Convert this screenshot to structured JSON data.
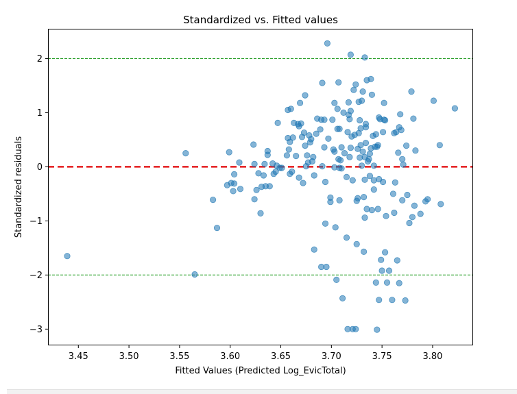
{
  "chart_data": {
    "type": "scatter",
    "title": "Standardized vs. Fitted values",
    "xlabel": "Fitted Values (Predicted Log_EvicTotal)",
    "ylabel": "Standardized residuals",
    "xlim": [
      3.42,
      3.84
    ],
    "ylim": [
      -3.3,
      2.55
    ],
    "xticks": [
      3.45,
      3.5,
      3.55,
      3.6,
      3.65,
      3.7,
      3.75,
      3.8
    ],
    "xtick_labels": [
      "3.45",
      "3.50",
      "3.55",
      "3.60",
      "3.65",
      "3.70",
      "3.75",
      "3.80"
    ],
    "yticks": [
      2,
      1,
      0,
      -1,
      -2,
      -3
    ],
    "ytick_labels": [
      "2",
      "1",
      "0",
      "−1",
      "−2",
      "−3"
    ],
    "grid": false,
    "point_color": "#1f77b4",
    "reference_lines": [
      {
        "y": 0,
        "color": "#e41a1c",
        "style": "dashed"
      },
      {
        "y": 2,
        "color": "#2ca02c",
        "style": "dashed"
      },
      {
        "y": -2,
        "color": "#2ca02c",
        "style": "dashed"
      }
    ],
    "points": [
      [
        3.439,
        -1.65
      ],
      [
        3.556,
        0.25
      ],
      [
        3.565,
        -1.99
      ],
      [
        3.583,
        -0.61
      ],
      [
        3.587,
        -1.13
      ],
      [
        3.597,
        -0.34
      ],
      [
        3.599,
        0.27
      ],
      [
        3.601,
        -0.3
      ],
      [
        3.603,
        -0.45
      ],
      [
        3.604,
        -0.14
      ],
      [
        3.604,
        -0.31
      ],
      [
        3.609,
        0.08
      ],
      [
        3.61,
        -0.41
      ],
      [
        3.623,
        0.41
      ],
      [
        3.624,
        0.05
      ],
      [
        3.624,
        -0.6
      ],
      [
        3.626,
        -0.43
      ],
      [
        3.628,
        -0.12
      ],
      [
        3.63,
        -0.86
      ],
      [
        3.631,
        -0.37
      ],
      [
        3.633,
        -0.16
      ],
      [
        3.634,
        0.05
      ],
      [
        3.635,
        -0.36
      ],
      [
        3.637,
        0.29
      ],
      [
        3.637,
        0.22
      ],
      [
        3.639,
        -0.36
      ],
      [
        3.642,
        0.06
      ],
      [
        3.643,
        -0.13
      ],
      [
        3.645,
        -0.09
      ],
      [
        3.646,
        0.02
      ],
      [
        3.647,
        0.81
      ],
      [
        3.649,
        -0.02
      ],
      [
        3.651,
        -0.02
      ],
      [
        3.656,
        0.21
      ],
      [
        3.657,
        1.05
      ],
      [
        3.657,
        0.53
      ],
      [
        3.658,
        0.32
      ],
      [
        3.659,
        -0.13
      ],
      [
        3.659,
        0.46
      ],
      [
        3.66,
        1.07
      ],
      [
        3.661,
        -0.09
      ],
      [
        3.662,
        0.54
      ],
      [
        3.663,
        0.81
      ],
      [
        3.665,
        0.2
      ],
      [
        3.667,
        0.79
      ],
      [
        3.668,
        0.75
      ],
      [
        3.668,
        -0.2
      ],
      [
        3.669,
        1.18
      ],
      [
        3.67,
        0.8
      ],
      [
        3.671,
        0.55
      ],
      [
        3.672,
        -0.3
      ],
      [
        3.673,
        0.63
      ],
      [
        3.674,
        1.32
      ],
      [
        3.674,
        0.39
      ],
      [
        3.675,
        0.01
      ],
      [
        3.676,
        0.21
      ],
      [
        3.677,
        0.08
      ],
      [
        3.678,
        0.58
      ],
      [
        3.679,
        0.45
      ],
      [
        3.68,
        0.51
      ],
      [
        3.681,
        0.1
      ],
      [
        3.682,
        0.18
      ],
      [
        3.683,
        -0.16
      ],
      [
        3.683,
        -1.53
      ],
      [
        3.685,
        0.61
      ],
      [
        3.686,
        0.89
      ],
      [
        3.689,
        0.69
      ],
      [
        3.69,
        -1.85
      ],
      [
        3.69,
        0.87
      ],
      [
        3.691,
        1.55
      ],
      [
        3.691,
        0.01
      ],
      [
        3.693,
        0.36
      ],
      [
        3.693,
        0.87
      ],
      [
        3.694,
        -0.28
      ],
      [
        3.694,
        -1.05
      ],
      [
        3.695,
        -1.85
      ],
      [
        3.696,
        2.28
      ],
      [
        3.697,
        0.52
      ],
      [
        3.699,
        -0.65
      ],
      [
        3.699,
        -0.57
      ],
      [
        3.701,
        0.87
      ],
      [
        3.702,
        0.32
      ],
      [
        3.703,
        0.28
      ],
      [
        3.703,
        -0.01
      ],
      [
        3.703,
        1.18
      ],
      [
        3.704,
        -1.12
      ],
      [
        3.705,
        -2.09
      ],
      [
        3.706,
        1.07
      ],
      [
        3.706,
        0.7
      ],
      [
        3.707,
        1.56
      ],
      [
        3.707,
        0.14
      ],
      [
        3.708,
        0.7
      ],
      [
        3.708,
        -0.62
      ],
      [
        3.708,
        -0.02
      ],
      [
        3.709,
        0.12
      ],
      [
        3.71,
        0.36
      ],
      [
        3.71,
        -0.03
      ],
      [
        3.711,
        -2.43
      ],
      [
        3.712,
        1.0
      ],
      [
        3.713,
        0.25
      ],
      [
        3.715,
        -0.19
      ],
      [
        3.715,
        -1.31
      ],
      [
        3.716,
        0.64
      ],
      [
        3.716,
        -3.0
      ],
      [
        3.717,
        1.19
      ],
      [
        3.717,
        0.96
      ],
      [
        3.718,
        0.88
      ],
      [
        3.718,
        0.18
      ],
      [
        3.719,
        1.03
      ],
      [
        3.719,
        0.35
      ],
      [
        3.719,
        2.07
      ],
      [
        3.72,
        0.56
      ],
      [
        3.721,
        -0.25
      ],
      [
        3.721,
        -3.0
      ],
      [
        3.722,
        1.42
      ],
      [
        3.723,
        0.59
      ],
      [
        3.724,
        1.52
      ],
      [
        3.724,
        -3.0
      ],
      [
        3.725,
        -1.43
      ],
      [
        3.725,
        -0.63
      ],
      [
        3.726,
        -0.58
      ],
      [
        3.726,
        0.33
      ],
      [
        3.727,
        0.62
      ],
      [
        3.727,
        1.2
      ],
      [
        3.728,
        0.86
      ],
      [
        3.728,
        0.17
      ],
      [
        3.729,
        0.71
      ],
      [
        3.729,
        0.4
      ],
      [
        3.73,
        1.22
      ],
      [
        3.73,
        0.02
      ],
      [
        3.731,
        1.39
      ],
      [
        3.731,
        0.28
      ],
      [
        3.732,
        -1.57
      ],
      [
        3.732,
        -0.56
      ],
      [
        3.733,
        2.02
      ],
      [
        3.733,
        -0.24
      ],
      [
        3.733,
        -0.94
      ],
      [
        3.733,
        0.18
      ],
      [
        3.734,
        0.44
      ],
      [
        3.734,
        0.79
      ],
      [
        3.734,
        0.73
      ],
      [
        3.735,
        1.6
      ],
      [
        3.735,
        -0.78
      ],
      [
        3.736,
        0.1
      ],
      [
        3.737,
        0.14
      ],
      [
        3.738,
        -0.17
      ],
      [
        3.738,
        0.24
      ],
      [
        3.739,
        1.62
      ],
      [
        3.739,
        0.34
      ],
      [
        3.74,
        -0.8
      ],
      [
        3.74,
        1.33
      ],
      [
        3.741,
        0.57
      ],
      [
        3.742,
        -0.25
      ],
      [
        3.742,
        -0.42
      ],
      [
        3.742,
        0.02
      ],
      [
        3.743,
        0.37
      ],
      [
        3.744,
        -2.14
      ],
      [
        3.744,
        0.6
      ],
      [
        3.745,
        -3.01
      ],
      [
        3.745,
        0.37
      ],
      [
        3.746,
        -0.78
      ],
      [
        3.746,
        0.4
      ],
      [
        3.747,
        0.91
      ],
      [
        3.747,
        -2.46
      ],
      [
        3.747,
        -0.23
      ],
      [
        3.748,
        0.88
      ],
      [
        3.749,
        -1.72
      ],
      [
        3.75,
        -1.92
      ],
      [
        3.751,
        -0.28
      ],
      [
        3.751,
        0.64
      ],
      [
        3.752,
        1.18
      ],
      [
        3.752,
        0.87
      ],
      [
        3.753,
        -1.58
      ],
      [
        3.753,
        0.86
      ],
      [
        3.754,
        -0.91
      ],
      [
        3.755,
        -2.14
      ],
      [
        3.757,
        -1.92
      ],
      [
        3.76,
        -2.46
      ],
      [
        3.761,
        -0.5
      ],
      [
        3.762,
        0.62
      ],
      [
        3.762,
        -0.85
      ],
      [
        3.763,
        -0.29
      ],
      [
        3.764,
        0.64
      ],
      [
        3.765,
        -1.73
      ],
      [
        3.766,
        0.26
      ],
      [
        3.767,
        0.73
      ],
      [
        3.767,
        -2.15
      ],
      [
        3.768,
        0.97
      ],
      [
        3.769,
        0.68
      ],
      [
        3.77,
        0.14
      ],
      [
        3.77,
        -0.62
      ],
      [
        3.771,
        0.04
      ],
      [
        3.773,
        -2.47
      ],
      [
        3.774,
        0.39
      ],
      [
        3.775,
        -0.52
      ],
      [
        3.777,
        -1.04
      ],
      [
        3.779,
        1.39
      ],
      [
        3.78,
        -0.93
      ],
      [
        3.781,
        0.89
      ],
      [
        3.782,
        -0.72
      ],
      [
        3.783,
        0.3
      ],
      [
        3.788,
        -0.87
      ],
      [
        3.793,
        -0.64
      ],
      [
        3.795,
        -0.6
      ],
      [
        3.801,
        1.22
      ],
      [
        3.807,
        0.4
      ],
      [
        3.808,
        -0.69
      ],
      [
        3.822,
        1.08
      ]
    ]
  }
}
